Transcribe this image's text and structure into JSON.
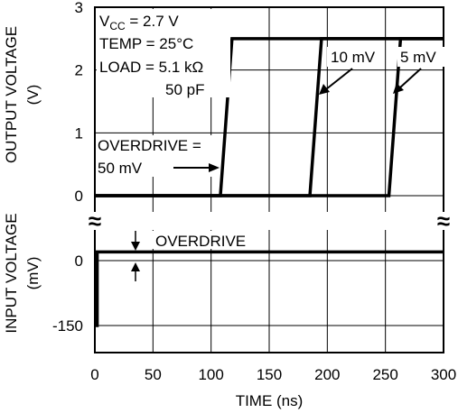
{
  "chart_data": {
    "type": "line",
    "xlabel": "TIME (ns)",
    "x_ticks": [
      "0",
      "50",
      "100",
      "150",
      "200",
      "250",
      "300"
    ],
    "xlim": [
      0,
      300
    ],
    "upper_panel": {
      "ylabel_line1": "OUTPUT VOLTAGE",
      "ylabel_line2": "(V)",
      "y_ticks": [
        "3",
        "2",
        "1",
        "0"
      ],
      "ylim": [
        0,
        3
      ],
      "grid": true,
      "series": [
        {
          "name": "50 mV",
          "points": [
            [
              0,
              0
            ],
            [
              108,
              0
            ],
            [
              118,
              2.5
            ],
            [
              300,
              2.5
            ]
          ]
        },
        {
          "name": "10 mV",
          "points": [
            [
              0,
              0
            ],
            [
              185,
              0
            ],
            [
              195,
              2.5
            ],
            [
              300,
              2.5
            ]
          ]
        },
        {
          "name": "5 mV",
          "points": [
            [
              0,
              0
            ],
            [
              253,
              0
            ],
            [
              263,
              2.5
            ],
            [
              300,
              2.5
            ]
          ]
        }
      ]
    },
    "lower_panel": {
      "ylabel_line1": "INPUT VOLTAGE",
      "ylabel_line2": "(mV)",
      "y_ticks": [
        "0",
        "-150"
      ],
      "grid": true,
      "series": [
        {
          "points": [
            [
              0,
              -150
            ],
            [
              2,
              -150
            ],
            [
              2,
              20
            ],
            [
              300,
              20
            ]
          ]
        }
      ]
    },
    "annotations": {
      "vcc_main": "V",
      "vcc_sub": "CC",
      "vcc_value": " = 2.7 V",
      "temp": "TEMP = 25°C",
      "load": "LOAD = 5.1 kΩ",
      "cap": "50 pF",
      "overdrive_line1": "OVERDRIVE =",
      "overdrive_line2": "50 mV",
      "label_10mv": "10 mV",
      "label_5mv": "5 mV",
      "input_overdrive": "OVERDRIVE",
      "break_symbol": "≈"
    }
  }
}
